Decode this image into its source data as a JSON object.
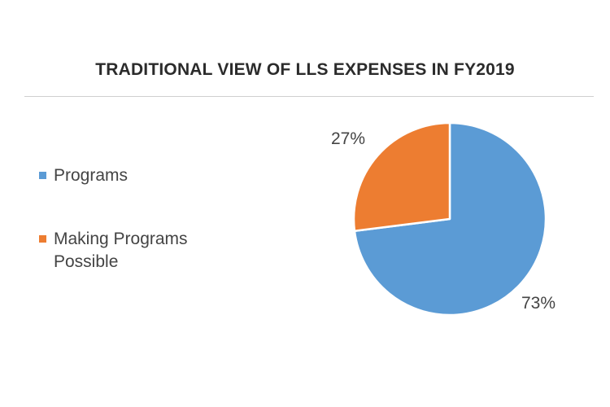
{
  "chart_data": {
    "type": "pie",
    "title": "TRADITIONAL VIEW OF LLS EXPENSES IN FY2019",
    "categories": [
      "Programs",
      "Making Programs Possible"
    ],
    "values": [
      73,
      27
    ],
    "data_labels": [
      "73%",
      "27%"
    ],
    "colors": [
      "#5b9bd5",
      "#ed7d31"
    ],
    "legend_position": "left"
  }
}
